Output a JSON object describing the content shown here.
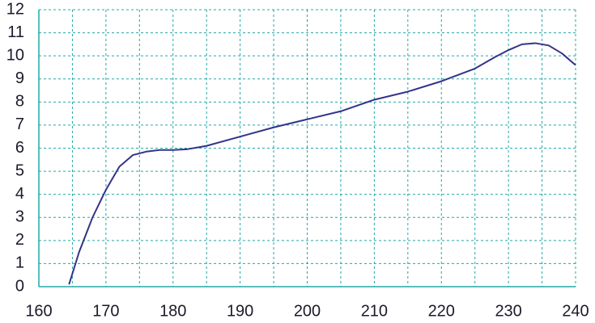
{
  "chart_data": {
    "type": "line",
    "x": [
      164.5,
      166,
      168,
      170,
      172,
      174,
      176,
      178,
      180,
      182,
      185,
      190,
      195,
      200,
      205,
      210,
      215,
      220,
      225,
      228,
      230,
      232,
      234,
      236,
      238,
      240
    ],
    "series": [
      {
        "color": "#33338a",
        "values": [
          0.1,
          1.5,
          3,
          4.2,
          5.2,
          5.7,
          5.85,
          5.92,
          5.92,
          5.95,
          6.1,
          6.5,
          6.9,
          7.25,
          7.6,
          8.1,
          8.45,
          8.9,
          9.45,
          9.95,
          10.25,
          10.5,
          10.55,
          10.45,
          10.1,
          9.6
        ]
      }
    ],
    "xlim": [
      160,
      240
    ],
    "xticks": [
      160,
      170,
      180,
      190,
      200,
      210,
      220,
      230,
      240
    ],
    "xminor": [
      165,
      175,
      185,
      195,
      205,
      215,
      225,
      235
    ],
    "ylim": [
      0,
      12
    ],
    "yticks": [
      0,
      1,
      2,
      3,
      4,
      5,
      6,
      7,
      8,
      9,
      10,
      11,
      12
    ],
    "grid": true,
    "grid_color": "#21a8a8"
  }
}
